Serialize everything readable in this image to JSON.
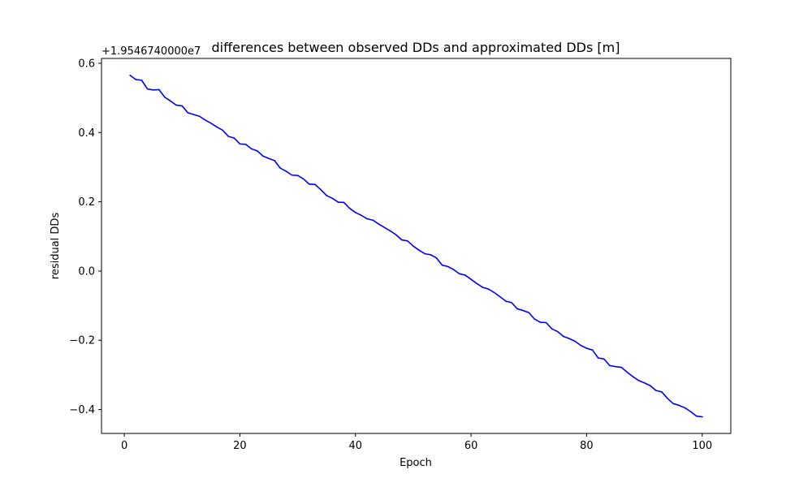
{
  "chart_data": {
    "type": "line",
    "title": "differences between observed DDs and approximated DDs [m]",
    "xlabel": "Epoch",
    "ylabel": "residual DDs",
    "y_offset_label": "+1.9546740000e7",
    "xlim": [
      -3.95,
      104.95
    ],
    "ylim": [
      -0.469,
      0.614
    ],
    "xticks": [
      0,
      20,
      40,
      60,
      80,
      100
    ],
    "xtick_labels": [
      "0",
      "20",
      "40",
      "60",
      "80",
      "100"
    ],
    "yticks": [
      -0.4,
      -0.2,
      0.0,
      0.2,
      0.4,
      0.6
    ],
    "ytick_labels": [
      "−0.4",
      "−0.2",
      "0.0",
      "0.2",
      "0.4",
      "0.6"
    ],
    "grid": false,
    "series": [
      {
        "color": "#0000ff",
        "x": [
          1,
          2,
          3,
          4,
          5,
          6,
          7,
          8,
          9,
          10,
          11,
          12,
          13,
          14,
          15,
          16,
          17,
          18,
          19,
          20,
          21,
          22,
          23,
          24,
          25,
          26,
          27,
          28,
          29,
          30,
          31,
          32,
          33,
          34,
          35,
          36,
          37,
          38,
          39,
          40,
          41,
          42,
          43,
          44,
          45,
          46,
          47,
          48,
          49,
          50,
          51,
          52,
          53,
          54,
          55,
          56,
          57,
          58,
          59,
          60,
          61,
          62,
          63,
          64,
          65,
          66,
          67,
          68,
          69,
          70,
          71,
          72,
          73,
          74,
          75,
          76,
          77,
          78,
          79,
          80,
          81,
          82,
          83,
          84,
          85,
          86,
          87,
          88,
          89,
          90,
          91,
          92,
          93,
          94,
          95,
          96,
          97,
          98,
          99,
          100
        ],
        "y": [
          0.565,
          0.553,
          0.551,
          0.526,
          0.523,
          0.524,
          0.502,
          0.491,
          0.479,
          0.477,
          0.457,
          0.452,
          0.447,
          0.436,
          0.427,
          0.416,
          0.407,
          0.389,
          0.384,
          0.367,
          0.366,
          0.353,
          0.347,
          0.332,
          0.325,
          0.319,
          0.297,
          0.288,
          0.277,
          0.276,
          0.266,
          0.251,
          0.25,
          0.235,
          0.218,
          0.21,
          0.199,
          0.198,
          0.181,
          0.169,
          0.161,
          0.151,
          0.147,
          0.136,
          0.126,
          0.116,
          0.105,
          0.09,
          0.087,
          0.072,
          0.06,
          0.05,
          0.047,
          0.038,
          0.017,
          0.013,
          0.004,
          -0.008,
          -0.012,
          -0.024,
          -0.036,
          -0.047,
          -0.052,
          -0.062,
          -0.074,
          -0.087,
          -0.091,
          -0.109,
          -0.114,
          -0.12,
          -0.139,
          -0.148,
          -0.149,
          -0.167,
          -0.175,
          -0.189,
          -0.195,
          -0.203,
          -0.215,
          -0.223,
          -0.228,
          -0.251,
          -0.254,
          -0.273,
          -0.276,
          -0.278,
          -0.292,
          -0.305,
          -0.316,
          -0.323,
          -0.331,
          -0.345,
          -0.349,
          -0.368,
          -0.383,
          -0.388,
          -0.395,
          -0.406,
          -0.419,
          -0.421
        ]
      }
    ]
  }
}
